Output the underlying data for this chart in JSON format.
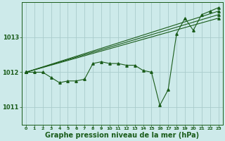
{
  "background_color": "#cdeaea",
  "grid_color": "#aacccc",
  "line_color": "#1a5c1a",
  "marker_color": "#1a5c1a",
  "xlabel": "Graphe pression niveau de la mer (hPa)",
  "xlabel_fontsize": 7,
  "yticks": [
    1011,
    1012,
    1013
  ],
  "xticks": [
    0,
    1,
    2,
    3,
    4,
    5,
    6,
    7,
    8,
    9,
    10,
    11,
    12,
    13,
    14,
    15,
    16,
    17,
    18,
    19,
    20,
    21,
    22,
    23
  ],
  "xlim": [
    -0.5,
    23.5
  ],
  "ylim": [
    1010.5,
    1014.0
  ],
  "hours": [
    0,
    1,
    2,
    3,
    4,
    5,
    6,
    7,
    8,
    9,
    10,
    11,
    12,
    13,
    14,
    15,
    16,
    17,
    18,
    19,
    20,
    21,
    22,
    23
  ],
  "series1": [
    1012.0,
    1012.0,
    1012.0,
    1011.85,
    1011.7,
    1011.75,
    1011.75,
    1011.8,
    1012.25,
    1012.3,
    1012.25,
    1012.25,
    1012.2,
    1012.2,
    1012.05,
    1012.0,
    1011.05,
    1011.5,
    1013.1,
    1013.55,
    1013.2,
    1013.65,
    1013.75,
    1013.85
  ],
  "trend1_x": [
    0,
    23
  ],
  "trend1_y": [
    1012.0,
    1013.75
  ],
  "trend2_x": [
    0,
    23
  ],
  "trend2_y": [
    1012.0,
    1013.65
  ],
  "trend3_x": [
    0,
    23
  ],
  "trend3_y": [
    1012.0,
    1013.55
  ]
}
